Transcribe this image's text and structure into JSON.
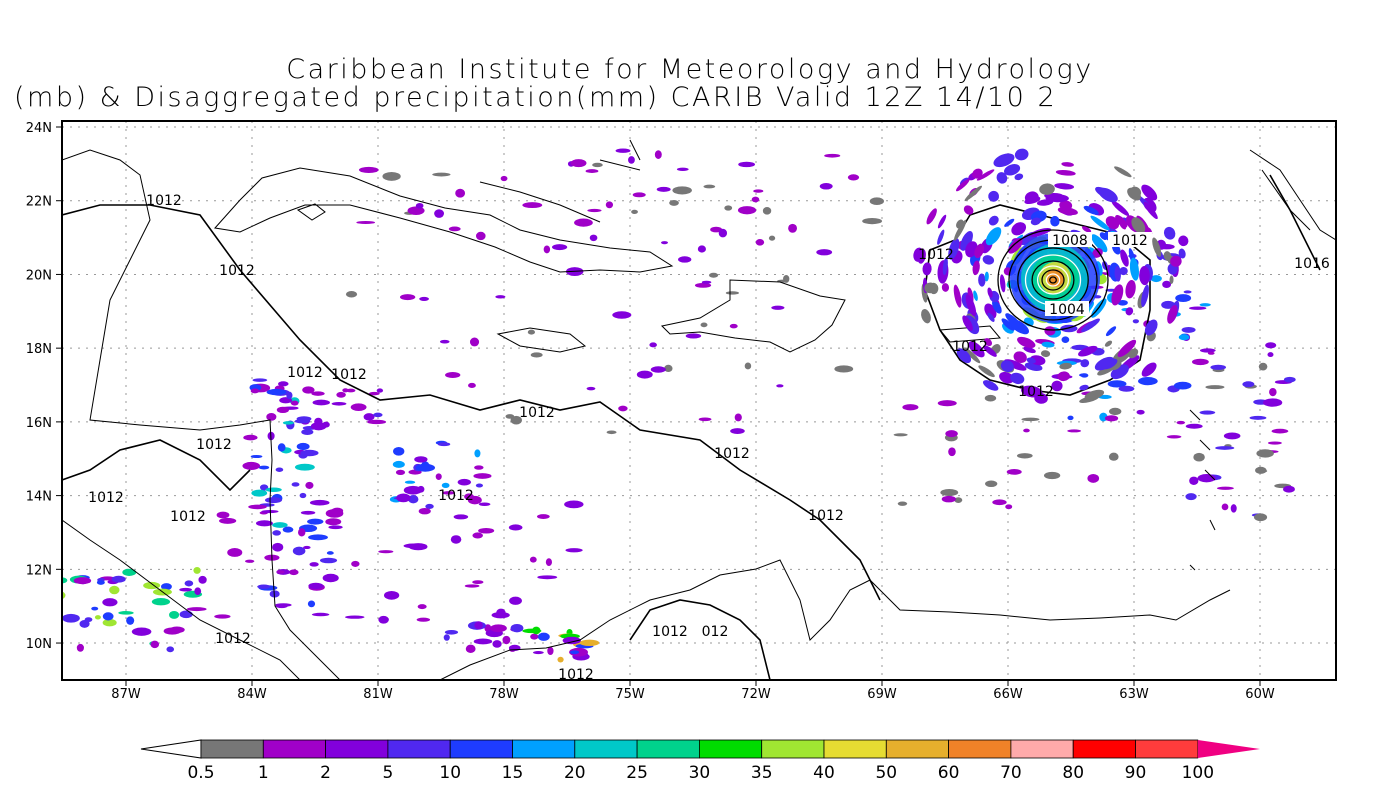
{
  "title": {
    "line1": "Caribbean Institute for Meteorology and Hydrology",
    "line2": "(mb) & Disaggregated precipitation(mm) CARIB Valid 12Z 14/10 2"
  },
  "axes": {
    "lat_labels": [
      "24N",
      "22N",
      "20N",
      "18N",
      "16N",
      "14N",
      "12N",
      "10N"
    ],
    "lon_labels": [
      "87W",
      "84W",
      "81W",
      "78W",
      "75W",
      "72W",
      "69W",
      "66W",
      "63W",
      "60W"
    ]
  },
  "contour_labels": [
    "1012",
    "1012",
    "1012",
    "1012",
    "1012",
    "1012",
    "1012",
    "1012",
    "1012",
    "1012",
    "1012",
    "1012",
    "1012",
    "1012",
    "012",
    "1008",
    "1012",
    "1012",
    "1004",
    "1012",
    "1012",
    "1016"
  ],
  "colorbar": {
    "labels": [
      "0.5",
      "1",
      "2",
      "5",
      "10",
      "15",
      "20",
      "25",
      "30",
      "35",
      "40",
      "50",
      "60",
      "70",
      "80",
      "90",
      "100"
    ],
    "colors": [
      "#777777",
      "#a000c8",
      "#8200dc",
      "#5028f0",
      "#1e3cff",
      "#00a0ff",
      "#00c8c8",
      "#00d28c",
      "#00dc00",
      "#a0e632",
      "#e6dc32",
      "#e6af2d",
      "#f08228",
      "#ffaaaa",
      "#ff0000",
      "#ff3c3c",
      "#f00082"
    ]
  }
}
